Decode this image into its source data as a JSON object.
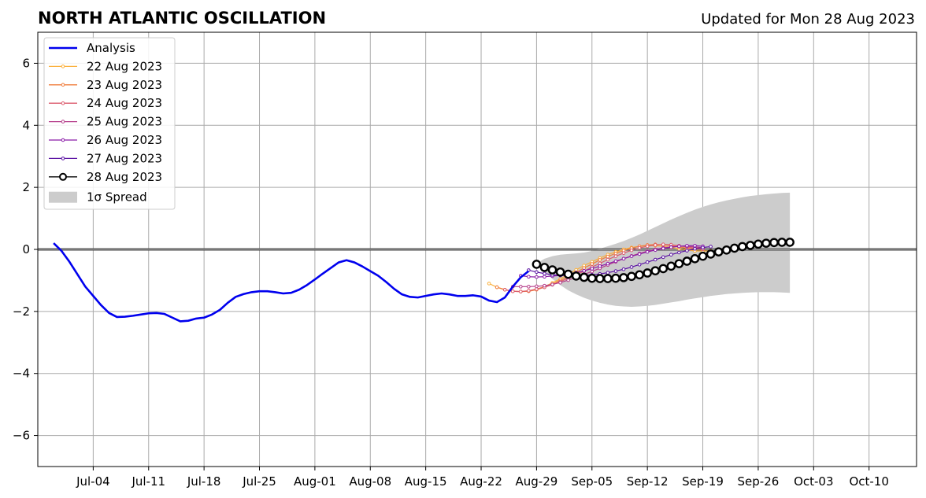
{
  "chart_data": {
    "type": "line",
    "title": "NORTH ATLANTIC OSCILLATION",
    "subtitle": "Updated for Mon 28 Aug 2023",
    "xlabel": "",
    "ylabel": "",
    "x_range": [
      "2023-06-27",
      "2023-10-16"
    ],
    "ylim": [
      -7,
      7
    ],
    "y_ticks": [
      -6,
      -4,
      -2,
      0,
      2,
      4,
      6
    ],
    "y_tick_labels": [
      "−6",
      "−4",
      "−2",
      "0",
      "2",
      "4",
      "6"
    ],
    "x_ticks": [
      "2023-07-04",
      "2023-07-11",
      "2023-07-18",
      "2023-07-25",
      "2023-08-01",
      "2023-08-08",
      "2023-08-15",
      "2023-08-22",
      "2023-08-29",
      "2023-09-05",
      "2023-09-12",
      "2023-09-19",
      "2023-09-26",
      "2023-10-03",
      "2023-10-10"
    ],
    "x_tick_labels": [
      "Jul-04",
      "Jul-11",
      "Jul-18",
      "Jul-25",
      "Aug-01",
      "Aug-08",
      "Aug-15",
      "Aug-22",
      "Aug-29",
      "Sep-05",
      "Sep-12",
      "Sep-19",
      "Sep-26",
      "Oct-03",
      "Oct-10"
    ],
    "grid": true,
    "legend_position": "top-left",
    "zero_line": true,
    "analysis": {
      "name": "Analysis",
      "color": "#0000ee",
      "start_date": "2023-06-29",
      "values": [
        0.2,
        -0.05,
        -0.4,
        -0.8,
        -1.2,
        -1.5,
        -1.8,
        -2.05,
        -2.18,
        -2.17,
        -2.14,
        -2.1,
        -2.06,
        -2.05,
        -2.08,
        -2.2,
        -2.32,
        -2.3,
        -2.23,
        -2.2,
        -2.1,
        -1.95,
        -1.72,
        -1.53,
        -1.44,
        -1.38,
        -1.35,
        -1.35,
        -1.38,
        -1.42,
        -1.4,
        -1.3,
        -1.15,
        -0.97,
        -0.78,
        -0.6,
        -0.42,
        -0.35,
        -0.42,
        -0.55,
        -0.7,
        -0.85,
        -1.05,
        -1.27,
        -1.45,
        -1.53,
        -1.55,
        -1.5,
        -1.45,
        -1.42,
        -1.45,
        -1.5,
        -1.5,
        -1.48,
        -1.52,
        -1.65,
        -1.7,
        -1.55,
        -1.2,
        -0.9,
        -0.7
      ]
    },
    "series": [
      {
        "name": "22 Aug 2023",
        "color": "#fbb03b",
        "start_date": "2023-08-23",
        "values": [
          -1.1,
          -1.22,
          -1.3,
          -1.35,
          -1.36,
          -1.34,
          -1.28,
          -1.2,
          -1.08,
          -0.95,
          -0.8,
          -0.66,
          -0.52,
          -0.4,
          -0.28,
          -0.17,
          -0.08,
          0.0,
          0.06,
          0.1,
          0.12,
          0.12,
          0.1,
          0.06,
          0.02,
          -0.02,
          -0.05,
          -0.05,
          -0.05
        ]
      },
      {
        "name": "23 Aug 2023",
        "color": "#f07e3e",
        "start_date": "2023-08-24",
        "values": [
          -1.22,
          -1.3,
          -1.35,
          -1.36,
          -1.35,
          -1.3,
          -1.22,
          -1.12,
          -1.0,
          -0.88,
          -0.74,
          -0.6,
          -0.47,
          -0.34,
          -0.23,
          -0.13,
          -0.04,
          0.04,
          0.1,
          0.14,
          0.16,
          0.15,
          0.12,
          0.08,
          0.04,
          0.02,
          0.0
        ]
      },
      {
        "name": "24 Aug 2023",
        "color": "#db5c6e",
        "start_date": "2023-08-25",
        "values": [
          -1.3,
          -1.35,
          -1.36,
          -1.33,
          -1.28,
          -1.22,
          -1.14,
          -1.04,
          -0.93,
          -0.82,
          -0.7,
          -0.57,
          -0.45,
          -0.33,
          -0.22,
          -0.12,
          -0.03,
          0.05,
          0.1,
          0.14,
          0.16,
          0.15,
          0.12,
          0.08,
          0.04,
          0.01
        ]
      },
      {
        "name": "25 Aug 2023",
        "color": "#b53d8b",
        "start_date": "2023-08-26",
        "values": [
          -1.2,
          -1.2,
          -1.2,
          -1.19,
          -1.17,
          -1.13,
          -1.07,
          -0.99,
          -0.9,
          -0.81,
          -0.71,
          -0.61,
          -0.5,
          -0.4,
          -0.3,
          -0.21,
          -0.13,
          -0.06,
          0.0,
          0.05,
          0.08,
          0.1,
          0.1,
          0.08,
          0.05
        ]
      },
      {
        "name": "26 Aug 2023",
        "color": "#8b1ba8",
        "start_date": "2023-08-27",
        "values": [
          -0.85,
          -0.88,
          -0.89,
          -0.88,
          -0.86,
          -0.84,
          -0.8,
          -0.75,
          -0.69,
          -0.62,
          -0.54,
          -0.46,
          -0.38,
          -0.3,
          -0.22,
          -0.15,
          -0.08,
          -0.02,
          0.03,
          0.07,
          0.1,
          0.12,
          0.12,
          0.1
        ]
      },
      {
        "name": "27 Aug 2023",
        "color": "#5a11a3",
        "start_date": "2023-08-28",
        "values": [
          -0.67,
          -0.73,
          -0.78,
          -0.82,
          -0.84,
          -0.85,
          -0.85,
          -0.84,
          -0.82,
          -0.79,
          -0.75,
          -0.7,
          -0.64,
          -0.57,
          -0.49,
          -0.41,
          -0.33,
          -0.25,
          -0.17,
          -0.1,
          -0.04,
          0.02,
          0.06,
          0.09
        ]
      },
      {
        "name": "28 Aug 2023",
        "color": "#000000",
        "start_date": "2023-08-29",
        "values": [
          -0.48,
          -0.58,
          -0.66,
          -0.73,
          -0.8,
          -0.86,
          -0.9,
          -0.93,
          -0.94,
          -0.94,
          -0.93,
          -0.91,
          -0.87,
          -0.82,
          -0.76,
          -0.69,
          -0.62,
          -0.54,
          -0.46,
          -0.38,
          -0.3,
          -0.22,
          -0.15,
          -0.08,
          -0.02,
          0.04,
          0.09,
          0.13,
          0.17,
          0.2,
          0.22,
          0.23,
          0.23
        ]
      }
    ],
    "spread": {
      "name": "1σ Spread",
      "color": "#cccccc",
      "start_date": "2023-08-29",
      "upper": [
        -0.45,
        -0.3,
        -0.22,
        -0.17,
        -0.15,
        -0.13,
        -0.1,
        -0.05,
        0.02,
        0.1,
        0.18,
        0.27,
        0.37,
        0.48,
        0.6,
        0.72,
        0.84,
        0.96,
        1.07,
        1.18,
        1.28,
        1.37,
        1.45,
        1.52,
        1.58,
        1.63,
        1.68,
        1.72,
        1.75,
        1.78,
        1.8,
        1.82,
        1.83
      ],
      "lower": [
        -0.45,
        -0.7,
        -0.95,
        -1.15,
        -1.32,
        -1.45,
        -1.56,
        -1.65,
        -1.72,
        -1.78,
        -1.82,
        -1.84,
        -1.85,
        -1.84,
        -1.82,
        -1.79,
        -1.75,
        -1.71,
        -1.67,
        -1.62,
        -1.58,
        -1.54,
        -1.5,
        -1.47,
        -1.44,
        -1.42,
        -1.4,
        -1.39,
        -1.38,
        -1.38,
        -1.38,
        -1.39,
        -1.4
      ]
    }
  }
}
